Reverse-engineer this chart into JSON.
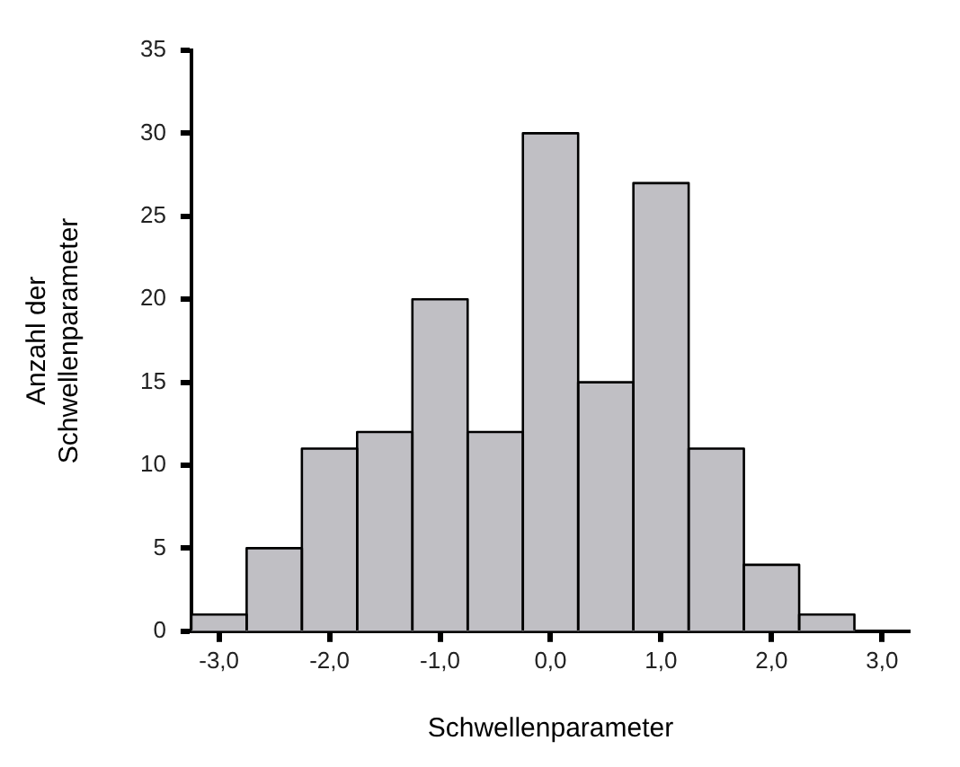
{
  "chart_data": {
    "type": "histogram",
    "xlabel": "Schwellenparameter",
    "ylabel": "Anzahl der Schwellenparameter",
    "bins": [
      -3.25,
      -2.75,
      -2.25,
      -1.75,
      -1.25,
      -0.75,
      -0.25,
      0.25,
      0.75,
      1.25,
      1.75,
      2.25,
      2.75
    ],
    "values": [
      1,
      5,
      11,
      12,
      20,
      12,
      30,
      15,
      27,
      11,
      4,
      1
    ],
    "color": "#c0bfc4",
    "xlim": [
      -3.25,
      3.25
    ],
    "xticks": [
      {
        "value": -3,
        "label": "-3,0"
      },
      {
        "value": -2,
        "label": "-2,0"
      },
      {
        "value": -1,
        "label": "-1,0"
      },
      {
        "value": 0,
        "label": "0,0"
      },
      {
        "value": 1,
        "label": "1,0"
      },
      {
        "value": 2,
        "label": "2,0"
      },
      {
        "value": 3,
        "label": "3,0"
      }
    ],
    "ylim": [
      0,
      35
    ],
    "yticks": [
      0,
      5,
      10,
      15,
      20,
      25,
      30,
      35
    ],
    "grid": false,
    "legend": false
  }
}
